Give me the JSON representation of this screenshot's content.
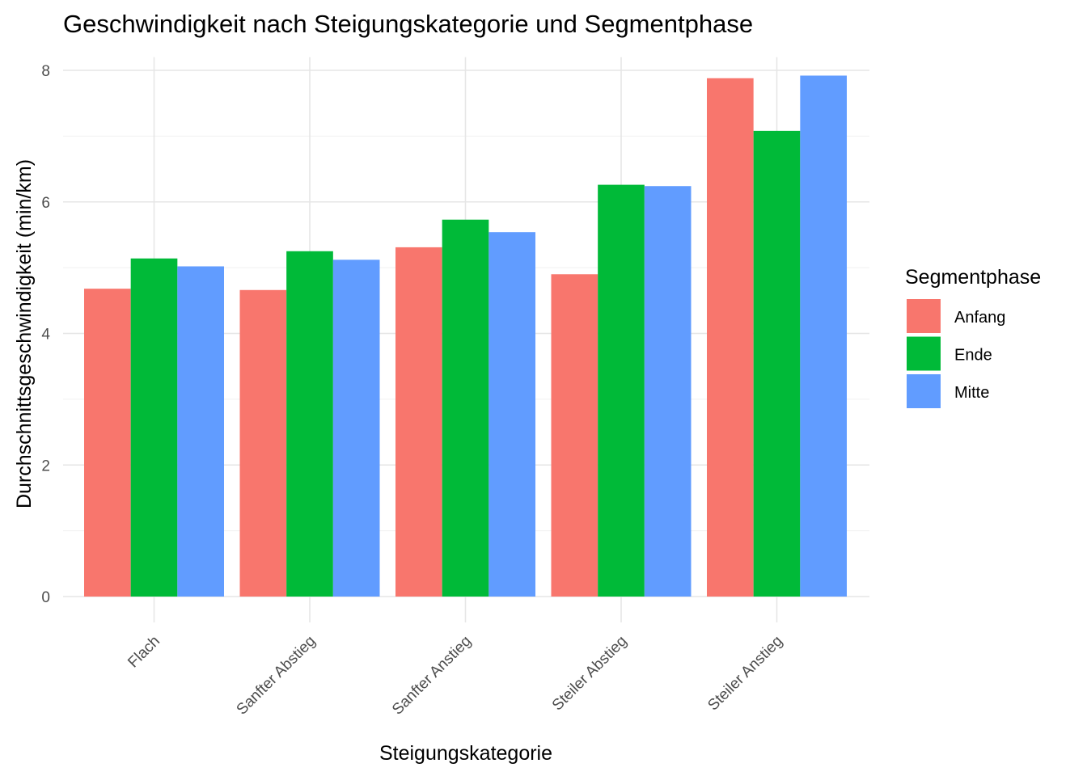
{
  "chart_data": {
    "type": "bar",
    "title": "Geschwindigkeit nach Steigungskategorie und Segmentphase",
    "xlabel": "Steigungskategorie",
    "ylabel": "Durchschnittsgeschwindigkeit (min/km)",
    "categories": [
      "Flach",
      "Sanfter Abstieg",
      "Sanfter Anstieg",
      "Steiler Abstieg",
      "Steiler Anstieg"
    ],
    "series": [
      {
        "name": "Anfang",
        "color": "#F8766D",
        "values": [
          4.68,
          4.66,
          5.31,
          4.9,
          7.88
        ]
      },
      {
        "name": "Ende",
        "color": "#00BA38",
        "values": [
          5.14,
          5.25,
          5.73,
          6.26,
          7.08
        ]
      },
      {
        "name": "Mitte",
        "color": "#619CFF",
        "values": [
          5.02,
          5.12,
          5.54,
          6.24,
          7.92
        ]
      }
    ],
    "ylim": [
      0,
      8.2
    ],
    "yticks": [
      0,
      2,
      4,
      6,
      8
    ],
    "ytick_labels": [
      "0",
      "2",
      "4",
      "6",
      "8"
    ],
    "legend": {
      "title": "Segmentphase",
      "position": "right"
    },
    "grid": true
  }
}
